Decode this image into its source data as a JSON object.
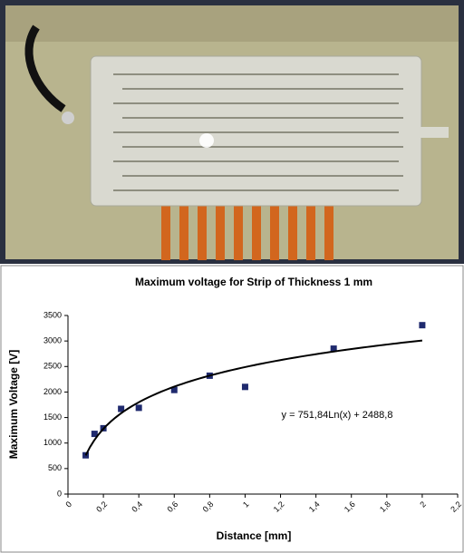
{
  "chart_data": {
    "type": "scatter",
    "title": "Maximum voltage for Strip of Thickness 1 mm",
    "x_label": "Distance [mm]",
    "y_label": "Maximum Voltage [V]",
    "series": [
      {
        "name": "Maximum voltage",
        "color": "#1f2a6e",
        "x": [
          0.1,
          0.15,
          0.2,
          0.3,
          0.4,
          0.6,
          0.8,
          1.0,
          1.5,
          2.0
        ],
        "values": [
          760,
          1180,
          1290,
          1670,
          1690,
          2040,
          2320,
          2100,
          2850,
          3310
        ]
      }
    ],
    "trendline": {
      "type": "log",
      "a": 751.84,
      "b": 2488.8,
      "label": "y = 751,84Ln(x) + 2488,8",
      "color": "#000000"
    },
    "xlim": [
      0,
      2.2
    ],
    "xticks": [
      0,
      {
        "value": 0.2,
        "label": "0,2"
      },
      {
        "value": 0.4,
        "label": "0,4"
      },
      {
        "value": 0.6,
        "label": "0,6"
      },
      {
        "value": 0.8,
        "label": "0,8"
      },
      1,
      {
        "value": 1.2,
        "label": "1,2"
      },
      {
        "value": 1.4,
        "label": "1,4"
      },
      {
        "value": 1.6,
        "label": "1,6"
      },
      {
        "value": 1.8,
        "label": "1,8"
      },
      2,
      {
        "value": 2.2,
        "label": "2,2"
      }
    ],
    "ylim": [
      0,
      3500
    ],
    "yticks": [
      0,
      500,
      1000,
      1500,
      2000,
      2500,
      3000,
      3500
    ],
    "grid": false
  }
}
